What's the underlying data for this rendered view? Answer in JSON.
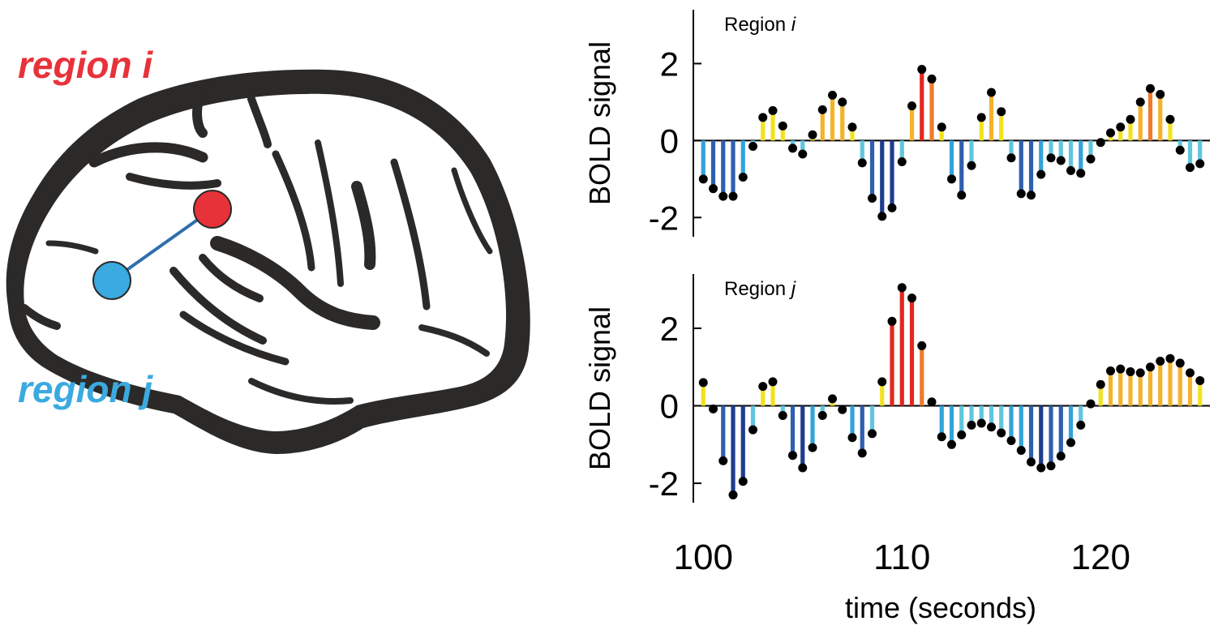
{
  "brain": {
    "region_i_label": "region i",
    "region_j_label": "region j",
    "colors": {
      "region_i": "#e8323a",
      "region_j": "#3aaae0",
      "link": "#2f6fae",
      "outline": "#2b2a29"
    }
  },
  "chart_data": [
    {
      "type": "stem",
      "title": "Region i",
      "ylabel": "BOLD signal",
      "xlabel": "",
      "xlim": [
        99.5,
        125.5
      ],
      "ylim": [
        -2.5,
        3.4
      ],
      "yticks": [
        -2,
        0,
        2
      ],
      "ytick_labels": [
        "-2",
        "0",
        "2"
      ],
      "x_start": 100,
      "x_step": 0.5,
      "values": [
        -1.0,
        -1.25,
        -1.45,
        -1.45,
        -0.95,
        -0.15,
        0.6,
        0.78,
        0.38,
        -0.2,
        -0.35,
        0.15,
        0.8,
        1.18,
        1.0,
        0.35,
        -0.58,
        -1.5,
        -1.97,
        -1.75,
        -0.55,
        0.9,
        1.85,
        1.6,
        0.35,
        -1.0,
        -1.42,
        -0.65,
        0.6,
        1.25,
        0.75,
        -0.45,
        -1.38,
        -1.42,
        -0.88,
        -0.45,
        -0.52,
        -0.78,
        -0.85,
        -0.48,
        -0.05,
        0.2,
        0.35,
        0.55,
        1.0,
        1.35,
        1.2,
        0.55,
        -0.25,
        -0.7,
        -0.6
      ]
    },
    {
      "type": "stem",
      "title": "Region j",
      "ylabel": "BOLD signal",
      "xlabel": "time (seconds)",
      "xlim": [
        99.5,
        125.5
      ],
      "ylim": [
        -2.5,
        3.4
      ],
      "yticks": [
        -2,
        0,
        2
      ],
      "ytick_labels": [
        "-2",
        "0",
        "2"
      ],
      "xticks": [
        100,
        110,
        120
      ],
      "xtick_labels": [
        "100",
        "110",
        "120"
      ],
      "x_start": 100,
      "x_step": 0.5,
      "values": [
        0.6,
        -0.08,
        -1.42,
        -2.3,
        -1.95,
        -0.62,
        0.5,
        0.62,
        -0.25,
        -1.28,
        -1.6,
        -1.08,
        -0.25,
        0.18,
        -0.1,
        -0.82,
        -1.22,
        -0.72,
        0.62,
        2.18,
        3.05,
        2.78,
        1.55,
        0.1,
        -0.8,
        -1.0,
        -0.75,
        -0.5,
        -0.45,
        -0.55,
        -0.7,
        -0.9,
        -1.15,
        -1.45,
        -1.6,
        -1.55,
        -1.3,
        -0.95,
        -0.5,
        0.05,
        0.55,
        0.9,
        0.95,
        0.88,
        0.85,
        1.0,
        1.15,
        1.22,
        1.1,
        0.85,
        0.65
      ]
    }
  ]
}
